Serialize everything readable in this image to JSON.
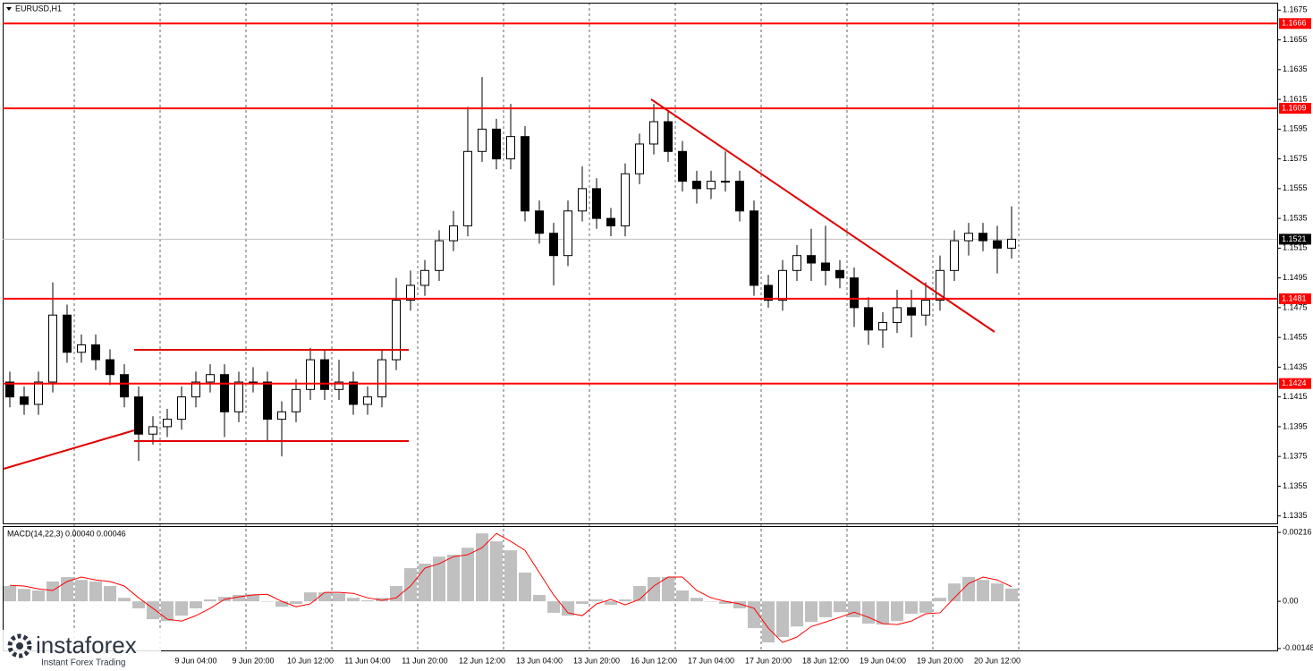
{
  "chart_data": {
    "type": "candlestick",
    "title": "EURUSD,H1",
    "categories": [
      null,
      null,
      null,
      null,
      null,
      null,
      null,
      null,
      null,
      null,
      null,
      null,
      null,
      "9 Jun 04:00",
      null,
      null,
      null,
      "9 Jun 20:00",
      null,
      null,
      null,
      "10 Jun 12:00",
      null,
      null,
      null,
      "11 Jun 04:00",
      null,
      null,
      null,
      "11 Jun 20:00",
      null,
      null,
      null,
      "12 Jun 12:00",
      null,
      null,
      null,
      "13 Jun 04:00",
      null,
      null,
      null,
      "13 Jun 20:00",
      null,
      null,
      null,
      "16 Jun 12:00",
      null,
      null,
      null,
      "17 Jun 04:00",
      null,
      null,
      null,
      "17 Jun 20:00",
      null,
      null,
      null,
      "18 Jun 12:00",
      null,
      null,
      null,
      "19 Jun 04:00",
      null,
      null,
      null,
      "19 Jun 20:00",
      null,
      null,
      null,
      "20 Jun 12:00",
      null
    ],
    "open": [
      1.1425,
      1.1415,
      1.141,
      1.1425,
      1.147,
      1.1445,
      1.145,
      1.144,
      1.143,
      1.1415,
      1.139,
      1.1395,
      1.14,
      1.1415,
      1.1425,
      1.143,
      1.1405,
      1.1425,
      1.1425,
      1.14,
      1.1405,
      1.142,
      1.144,
      1.142,
      1.1425,
      1.141,
      1.1415,
      1.144,
      1.148,
      1.149,
      1.15,
      1.152,
      1.153,
      1.158,
      1.1595,
      1.1575,
      1.159,
      1.154,
      1.1525,
      1.151,
      1.154,
      1.1555,
      1.1535,
      1.153,
      1.1565,
      1.1585,
      1.16,
      1.158,
      1.156,
      1.1555,
      1.156,
      1.156,
      1.154,
      1.149,
      1.148,
      1.15,
      1.151,
      1.1505,
      1.15,
      1.1495,
      1.1475,
      1.146,
      1.1465,
      1.1475,
      1.147,
      1.148,
      1.15,
      1.152,
      1.1525,
      1.152,
      1.1515
    ],
    "high": [
      1.1432,
      1.1422,
      1.1432,
      1.1492,
      1.1477,
      1.1457,
      1.1457,
      1.1447,
      1.1437,
      1.1422,
      1.1402,
      1.1407,
      1.1422,
      1.1432,
      1.1437,
      1.1437,
      1.1432,
      1.1435,
      1.1432,
      1.1412,
      1.1427,
      1.1448,
      1.1447,
      1.144,
      1.1432,
      1.1422,
      1.1447,
      1.1495,
      1.15,
      1.1507,
      1.1527,
      1.154,
      1.161,
      1.163,
      1.1602,
      1.1612,
      1.1597,
      1.1547,
      1.1532,
      1.1547,
      1.157,
      1.1562,
      1.1542,
      1.1572,
      1.1592,
      1.1612,
      1.1607,
      1.1587,
      1.1567,
      1.1567,
      1.158,
      1.1567,
      1.1547,
      1.1497,
      1.1507,
      1.1517,
      1.1528,
      1.153,
      1.1507,
      1.1502,
      1.1482,
      1.1472,
      1.1487,
      1.1487,
      1.1492,
      1.151,
      1.1527,
      1.1532,
      1.1532,
      1.153,
      1.1543
    ],
    "low": [
      1.1408,
      1.1403,
      1.1403,
      1.1418,
      1.1438,
      1.1438,
      1.1433,
      1.1423,
      1.1408,
      1.1372,
      1.1383,
      1.1388,
      1.1393,
      1.1408,
      1.1418,
      1.1388,
      1.1398,
      1.1418,
      1.1385,
      1.1375,
      1.1398,
      1.1413,
      1.1413,
      1.1413,
      1.1403,
      1.1403,
      1.1408,
      1.1433,
      1.1473,
      1.1483,
      1.1493,
      1.1513,
      1.1523,
      1.1573,
      1.1568,
      1.1568,
      1.1533,
      1.1518,
      1.149,
      1.1503,
      1.1533,
      1.1528,
      1.1523,
      1.1523,
      1.1558,
      1.1578,
      1.1573,
      1.1553,
      1.1545,
      1.1548,
      1.1553,
      1.1533,
      1.1483,
      1.1475,
      1.1473,
      1.1493,
      1.1493,
      1.149,
      1.1488,
      1.1462,
      1.145,
      1.1448,
      1.1458,
      1.1455,
      1.1463,
      1.1473,
      1.1493,
      1.151,
      1.1513,
      1.1498,
      1.1508
    ],
    "close": [
      1.1415,
      1.141,
      1.1425,
      1.147,
      1.1445,
      1.145,
      1.144,
      1.143,
      1.1415,
      1.139,
      1.1395,
      1.14,
      1.1415,
      1.1425,
      1.143,
      1.1405,
      1.1425,
      1.1425,
      1.14,
      1.1405,
      1.142,
      1.144,
      1.142,
      1.1425,
      1.141,
      1.1415,
      1.144,
      1.148,
      1.149,
      1.15,
      1.152,
      1.153,
      1.158,
      1.1595,
      1.1575,
      1.159,
      1.154,
      1.1525,
      1.151,
      1.154,
      1.1555,
      1.1535,
      1.153,
      1.1565,
      1.1585,
      1.16,
      1.158,
      1.156,
      1.1555,
      1.156,
      1.156,
      1.154,
      1.149,
      1.148,
      1.15,
      1.151,
      1.1505,
      1.15,
      1.1495,
      1.1475,
      1.146,
      1.1465,
      1.1475,
      1.147,
      1.148,
      1.15,
      1.152,
      1.1525,
      1.152,
      1.1515,
      1.1521
    ],
    "ylim": [
      1.133,
      1.168
    ],
    "yticks": [
      1.1675,
      1.1655,
      1.1635,
      1.1615,
      1.1595,
      1.1575,
      1.1555,
      1.1535,
      1.1515,
      1.1495,
      1.1475,
      1.1455,
      1.1435,
      1.1415,
      1.1395,
      1.1375,
      1.1355,
      1.1335
    ],
    "levels": [
      1.1666,
      1.1609,
      1.1481,
      1.1424
    ],
    "level_color": "#ff0000",
    "last_price": 1.1521,
    "macd": {
      "title": "MACD(14,22,3) 0.00040 0.00046",
      "histogram": [
        0.00048,
        0.00039,
        0.00034,
        0.00062,
        0.00076,
        0.00067,
        0.00062,
        0.00048,
        0.00011,
        -0.00022,
        -0.00056,
        -0.00062,
        -0.00045,
        -0.00022,
        6e-05,
        0.00014,
        0.0002,
        0.00022,
        0,
        -0.00017,
        -8e-05,
        0.00028,
        0.00028,
        0.00025,
        0.00011,
        3e-05,
        0.00011,
        0.00048,
        0.00104,
        0.00118,
        0.0014,
        0.00146,
        0.00168,
        0.00213,
        0.00188,
        0.0016,
        0.0009,
        0.0002,
        -0.00036,
        -0.00045,
        -8e-05,
        6e-05,
        -0.00011,
        6e-05,
        0.00048,
        0.00076,
        0.00076,
        0.00034,
        0.00011,
        0,
        -8e-05,
        -0.00022,
        -0.00084,
        -0.00129,
        -0.00112,
        -0.00079,
        -0.00065,
        -0.0005,
        -0.00034,
        -0.0005,
        -0.0007,
        -0.00073,
        -0.00062,
        -0.00039,
        -0.00036,
        0.00011,
        0.00056,
        0.00076,
        0.00067,
        0.00056,
        0.0004
      ],
      "signal": [
        0.0005,
        0.00048,
        0.00039,
        0.00034,
        0.00062,
        0.00076,
        0.00067,
        0.00062,
        0.00048,
        0.00011,
        -0.00022,
        -0.00056,
        -0.00062,
        -0.00045,
        -0.00022,
        6e-05,
        0.00014,
        0.0002,
        0.00022,
        0,
        -0.00017,
        -8e-05,
        0.00028,
        0.00028,
        0.00025,
        0.00011,
        3e-05,
        0.00011,
        0.00048,
        0.00104,
        0.00118,
        0.0014,
        0.00146,
        0.00168,
        0.00213,
        0.00188,
        0.0016,
        0.0009,
        0.0002,
        -0.00036,
        -0.00045,
        -8e-05,
        6e-05,
        -0.00011,
        6e-05,
        0.00048,
        0.00076,
        0.00076,
        0.00034,
        0.00011,
        0,
        -8e-05,
        -0.00022,
        -0.00084,
        -0.00129,
        -0.00112,
        -0.00079,
        -0.00065,
        -0.0005,
        -0.00034,
        -0.0005,
        -0.0007,
        -0.00073,
        -0.00062,
        -0.00039,
        -0.00036,
        0.00011,
        0.00056,
        0.00076,
        0.00067,
        0.00046
      ],
      "ylim": [
        -0.00154,
        0.00236
      ],
      "yticks": [
        0.00216,
        {
          "value": 0,
          "label": "0.00"
        },
        -0.00148
      ],
      "hist_color": "#c0c0c0",
      "signal_color": "#ff0000"
    }
  },
  "watermark": {
    "name": "instaforex",
    "tagline": "Instant Forex Trading"
  }
}
